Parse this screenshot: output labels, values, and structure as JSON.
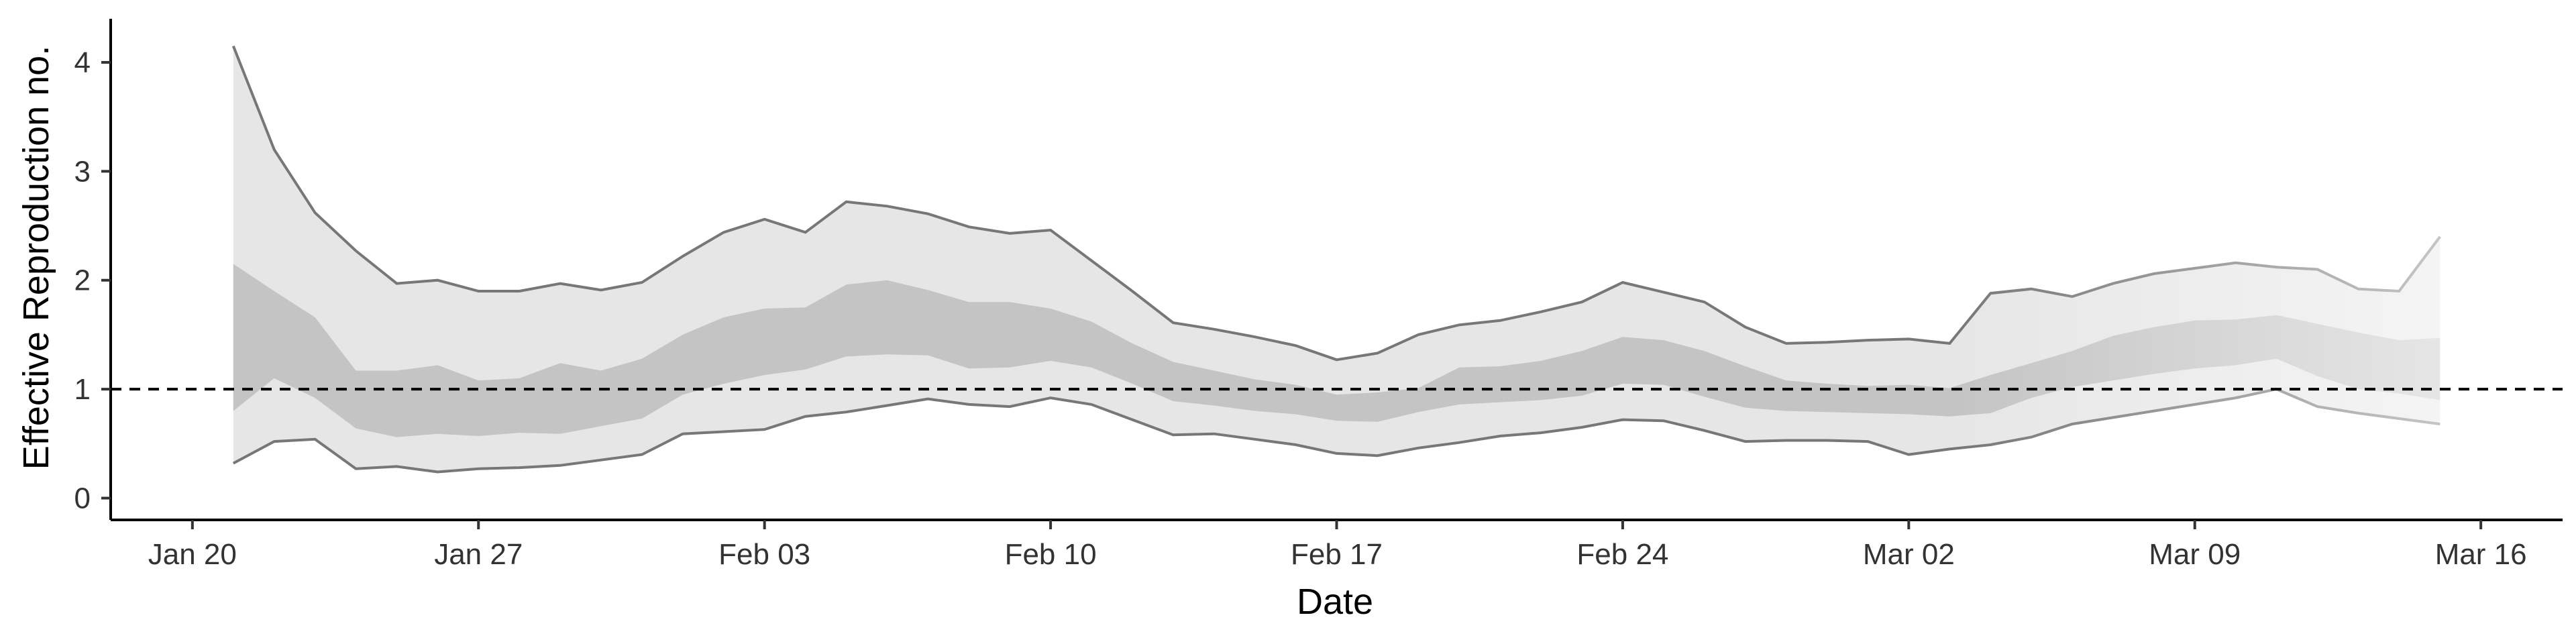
{
  "chart_data": {
    "type": "area",
    "xlabel": "Date",
    "ylabel": "Effective Reproduction no.",
    "x_tick_labels": [
      "Jan 20",
      "Jan 27",
      "Feb 03",
      "Feb 10",
      "Feb 17",
      "Feb 24",
      "Mar 02",
      "Mar 09",
      "Mar 16"
    ],
    "x_tick_dates": [
      "2020-01-20",
      "2020-01-27",
      "2020-02-03",
      "2020-02-10",
      "2020-02-17",
      "2020-02-24",
      "2020-03-02",
      "2020-03-09",
      "2020-03-16"
    ],
    "y_ticks": [
      0,
      1,
      2,
      3,
      4
    ],
    "xlim": [
      "2020-01-18",
      "2020-03-18"
    ],
    "ylim": [
      -0.2,
      4.4
    ],
    "reference_line": {
      "y": 1,
      "style": "dashed"
    },
    "grid": false,
    "legend": "none",
    "series": [
      {
        "x": [
          "2020-01-21",
          "2020-01-22",
          "2020-01-23",
          "2020-01-24",
          "2020-01-25",
          "2020-01-26",
          "2020-01-27",
          "2020-01-28",
          "2020-01-29",
          "2020-01-30",
          "2020-01-31",
          "2020-02-01",
          "2020-02-02",
          "2020-02-03",
          "2020-02-04",
          "2020-02-05",
          "2020-02-06",
          "2020-02-07",
          "2020-02-08",
          "2020-02-09",
          "2020-02-10",
          "2020-02-11",
          "2020-02-12",
          "2020-02-13",
          "2020-02-14",
          "2020-02-15",
          "2020-02-16",
          "2020-02-17",
          "2020-02-18",
          "2020-02-19",
          "2020-02-20",
          "2020-02-21",
          "2020-02-22",
          "2020-02-23",
          "2020-02-24",
          "2020-02-25",
          "2020-02-26",
          "2020-02-27",
          "2020-02-28",
          "2020-02-29",
          "2020-03-01",
          "2020-03-02",
          "2020-03-03",
          "2020-03-04",
          "2020-03-05",
          "2020-03-06",
          "2020-03-07",
          "2020-03-08",
          "2020-03-09",
          "2020-03-10",
          "2020-03-11",
          "2020-03-12",
          "2020-03-13",
          "2020-03-14",
          "2020-03-15"
        ],
        "upper_95": [
          4.15,
          3.2,
          2.62,
          2.27,
          1.97,
          2.0,
          1.9,
          1.9,
          1.97,
          1.91,
          1.98,
          2.22,
          2.44,
          2.56,
          2.44,
          2.72,
          2.68,
          2.61,
          2.49,
          2.43,
          2.46,
          2.18,
          1.9,
          1.61,
          1.55,
          1.48,
          1.4,
          1.27,
          1.33,
          1.5,
          1.59,
          1.63,
          1.71,
          1.8,
          1.98,
          1.89,
          1.8,
          1.57,
          1.42,
          1.43,
          1.45,
          1.46,
          1.42,
          1.88,
          1.92,
          1.85,
          1.97,
          2.06,
          2.11,
          2.16,
          2.12,
          2.1,
          1.92,
          1.9,
          2.4
        ],
        "upper_50": [
          2.15,
          1.9,
          1.66,
          1.17,
          1.17,
          1.22,
          1.08,
          1.1,
          1.24,
          1.17,
          1.28,
          1.5,
          1.66,
          1.74,
          1.75,
          1.96,
          2.0,
          1.91,
          1.8,
          1.8,
          1.74,
          1.62,
          1.42,
          1.25,
          1.17,
          1.09,
          1.04,
          0.95,
          0.97,
          1.01,
          1.2,
          1.21,
          1.26,
          1.35,
          1.48,
          1.45,
          1.35,
          1.21,
          1.08,
          1.05,
          1.03,
          1.04,
          1.01,
          1.13,
          1.24,
          1.35,
          1.49,
          1.57,
          1.63,
          1.64,
          1.68,
          1.6,
          1.52,
          1.45,
          1.47
        ],
        "lower_50": [
          0.8,
          1.1,
          0.92,
          0.64,
          0.56,
          0.59,
          0.57,
          0.6,
          0.59,
          0.66,
          0.73,
          0.95,
          1.05,
          1.13,
          1.18,
          1.3,
          1.32,
          1.31,
          1.19,
          1.2,
          1.26,
          1.2,
          1.05,
          0.89,
          0.85,
          0.8,
          0.77,
          0.71,
          0.7,
          0.79,
          0.86,
          0.88,
          0.9,
          0.94,
          1.05,
          1.04,
          0.93,
          0.83,
          0.8,
          0.79,
          0.78,
          0.77,
          0.75,
          0.78,
          0.92,
          1.02,
          1.08,
          1.14,
          1.19,
          1.22,
          1.28,
          1.12,
          1.0,
          0.96,
          0.9
        ],
        "lower_95": [
          0.32,
          0.52,
          0.54,
          0.27,
          0.29,
          0.24,
          0.27,
          0.28,
          0.3,
          0.35,
          0.4,
          0.59,
          0.61,
          0.63,
          0.75,
          0.79,
          0.85,
          0.91,
          0.86,
          0.84,
          0.92,
          0.86,
          0.72,
          0.58,
          0.59,
          0.54,
          0.49,
          0.41,
          0.39,
          0.46,
          0.51,
          0.57,
          0.6,
          0.65,
          0.72,
          0.71,
          0.62,
          0.52,
          0.53,
          0.53,
          0.52,
          0.4,
          0.45,
          0.49,
          0.56,
          0.68,
          0.74,
          0.8,
          0.86,
          0.92,
          1.0,
          0.84,
          0.78,
          0.73,
          0.68
        ]
      }
    ]
  }
}
